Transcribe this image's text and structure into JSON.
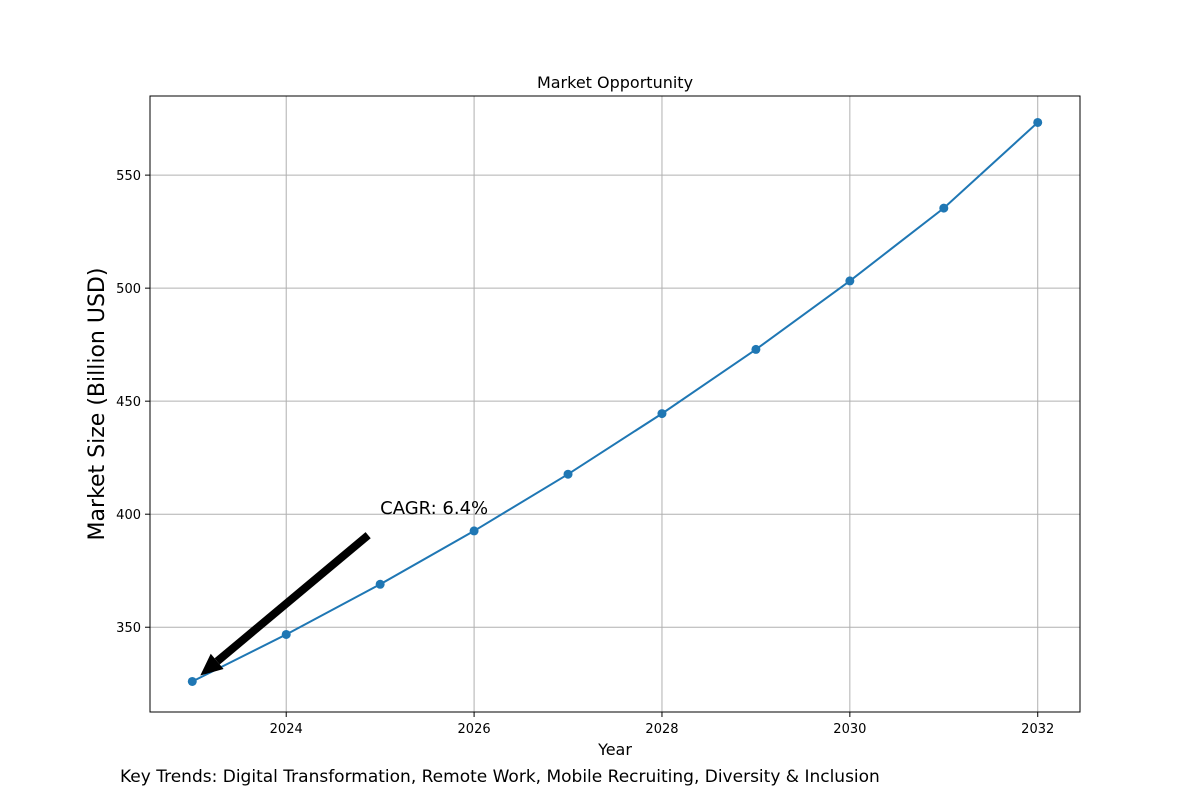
{
  "chart_data": {
    "type": "line",
    "title": "Market Opportunity",
    "xlabel": "Year",
    "ylabel": "Market Size (Billion USD)",
    "x": [
      2023,
      2024,
      2025,
      2026,
      2027,
      2028,
      2029,
      2030,
      2031,
      2032
    ],
    "series": [
      {
        "values": [
          326.0,
          346.8,
          369.0,
          392.6,
          417.7,
          444.5,
          472.9,
          503.2,
          535.4,
          573.3
        ],
        "color": "#1f77b4"
      }
    ],
    "xlim": [
      2022.55,
      2032.45
    ],
    "ylim": [
      312.5,
      585.0
    ],
    "xticks": [
      2024,
      2026,
      2028,
      2030,
      2032
    ],
    "yticks": [
      350,
      400,
      450,
      500,
      550
    ],
    "grid": true,
    "annotation": {
      "text": "CAGR: 6.4%",
      "text_at": [
        2025,
        400
      ],
      "arrow_to": [
        2023,
        326.0
      ]
    }
  },
  "footer": {
    "key_trends": "Key Trends: Digital Transformation, Remote Work, Mobile Recruiting, Diversity & Inclusion"
  }
}
